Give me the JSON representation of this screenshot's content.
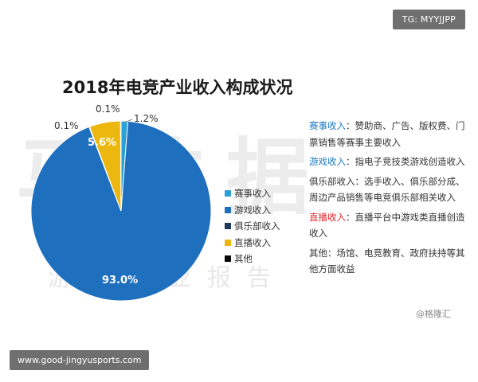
{
  "header_badge": "TG: MYYJJPP",
  "footer_badge": "www.good-jingyusports.com",
  "watermark": {
    "big": "马数据",
    "small": "游戏产业报告"
  },
  "credit": "@格隆汇",
  "chart_data": {
    "type": "pie",
    "title": "2018年电竞产业收入构成状况",
    "categories": [
      "赛事收入",
      "游戏收入",
      "俱乐部收入",
      "直播收入",
      "其他"
    ],
    "values": [
      1.2,
      93.0,
      0.1,
      5.6,
      0.1
    ],
    "value_labels": [
      "1.2%",
      "93.0%",
      "0.1%",
      "5.6%",
      "0.1%"
    ],
    "colors": [
      "#2a9fd8",
      "#1f6fbf",
      "#1d3b5c",
      "#ecb80f",
      "#0a0a0a"
    ],
    "legend_position": "right"
  },
  "notes": [
    {
      "head": "赛事收入",
      "text": "：赞助商、广告、版权费、门票销售等赛事主要收入"
    },
    {
      "head": "游戏收入",
      "text": "：指电子竞技类游戏创造收入"
    },
    {
      "head": "俱乐部收入",
      "text": "：选手收入、俱乐部分成、周边产品销售等电竞俱乐部相关收入"
    },
    {
      "head": "直播收入",
      "text": "：直播平台中游戏类直播创造收入"
    },
    {
      "head": "其他",
      "text": "：场馆、电竞教育、政府扶持等其他方面收益"
    }
  ]
}
